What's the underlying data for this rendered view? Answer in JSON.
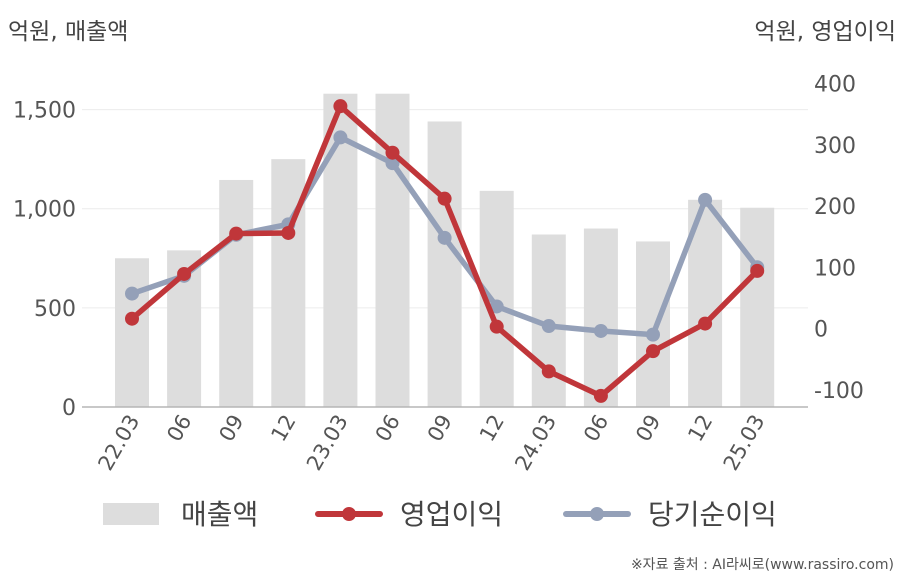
{
  "units": {
    "left": "억원, 매출액",
    "right": "억원, 영업이익"
  },
  "source": "※자료 출처 : AI라씨로(www.rassiro.com)",
  "chart_data": {
    "type": "bar+line",
    "categories": [
      "22.03",
      "06",
      "09",
      "12",
      "23.03",
      "06",
      "09",
      "12",
      "24.03",
      "06",
      "09",
      "12",
      "25.03"
    ],
    "y_left": {
      "range": [
        0,
        1750
      ],
      "ticks": [
        0,
        500,
        1000,
        1500
      ],
      "tick_labels": [
        "0",
        "500",
        "1,000",
        "1,500"
      ]
    },
    "y_right": {
      "range": [
        -130,
        400
      ],
      "ticks": [
        -100,
        0,
        100,
        200,
        300,
        400
      ],
      "tick_labels": [
        "-100",
        "0",
        "100",
        "200",
        "300",
        "400"
      ]
    },
    "series": [
      {
        "name": "매출액",
        "type": "bar",
        "axis": "left",
        "color": "#dddddd",
        "values": [
          750,
          790,
          1145,
          1250,
          1580,
          1580,
          1440,
          1090,
          870,
          900,
          835,
          1045,
          1005
        ]
      },
      {
        "name": "영업이익",
        "type": "line",
        "axis": "right",
        "color": "#c0363a",
        "values": [
          16,
          89,
          155,
          156,
          363,
          287,
          212,
          3,
          -70,
          -110,
          -37,
          8,
          94
        ]
      },
      {
        "name": "당기순이익",
        "type": "line",
        "axis": "right",
        "color": "#94a0b8",
        "values": [
          57,
          86,
          153,
          170,
          312,
          270,
          148,
          36,
          4,
          -4,
          -10,
          210,
          100
        ]
      }
    ],
    "grid": true,
    "legend_position": "bottom"
  }
}
